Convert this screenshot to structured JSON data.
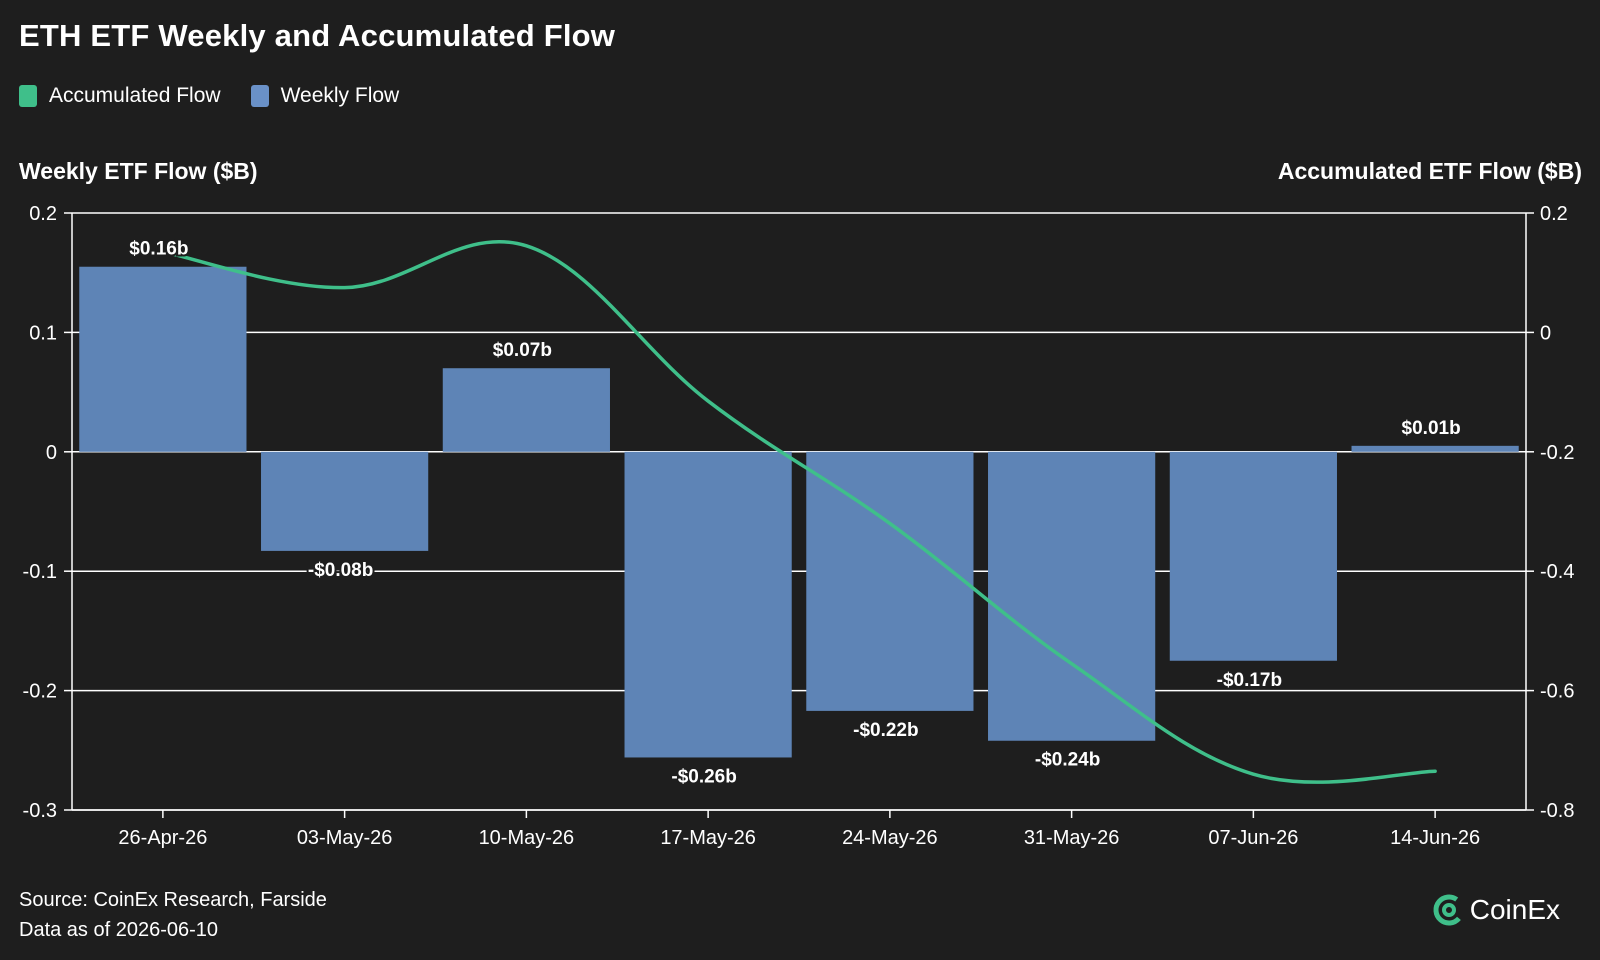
{
  "title": "ETH ETF Weekly and Accumulated Flow",
  "legend": [
    {
      "label": "Accumulated Flow",
      "color": "#3fbf8a"
    },
    {
      "label": "Weekly Flow",
      "color": "#6a91c8"
    }
  ],
  "left_axis_title": "Weekly ETF Flow ($B)",
  "right_axis_title": "Accumulated ETF Flow ($B)",
  "footer": {
    "source": "Source: CoinEx Research, Farside",
    "date": "Data as of 2026-06-10"
  },
  "logo": {
    "text": "CoinEx",
    "icon": "coinex-logo-icon"
  },
  "colors": {
    "background": "#1e1e1e",
    "bar": "#5e84b6",
    "line": "#3fbf8a",
    "grid": "#ffffff"
  },
  "chart_data": {
    "type": "bar",
    "categories": [
      "26-Apr-26",
      "03-May-26",
      "10-May-26",
      "17-May-26",
      "24-May-26",
      "31-May-26",
      "07-Jun-26",
      "14-Jun-26"
    ],
    "series": [
      {
        "name": "Weekly Flow",
        "type": "bar",
        "axis": "left",
        "values": [
          0.155,
          -0.083,
          0.07,
          -0.256,
          -0.217,
          -0.242,
          -0.175,
          0.005
        ],
        "labels": [
          "$0.16b",
          "-$0.08b",
          "$0.07b",
          "-$0.26b",
          "-$0.22b",
          "-$0.24b",
          "-$0.17b",
          "$0.01b"
        ]
      },
      {
        "name": "Accumulated Flow",
        "type": "line",
        "axis": "right",
        "values": [
          0.135,
          0.075,
          0.145,
          -0.115,
          -0.32,
          -0.555,
          -0.74,
          -0.735
        ]
      }
    ],
    "y_left": {
      "min": -0.3,
      "max": 0.2,
      "ticks": [
        "0.2",
        "0.1",
        "0",
        "-0.1",
        "-0.2",
        "-0.3"
      ],
      "tick_values": [
        0.2,
        0.1,
        0,
        -0.1,
        -0.2,
        -0.3
      ]
    },
    "y_right": {
      "min": -0.8,
      "max": 0.2,
      "ticks": [
        "0.2",
        "0",
        "-0.2",
        "-0.4",
        "-0.6",
        "-0.8"
      ],
      "tick_values": [
        0.2,
        0,
        -0.2,
        -0.4,
        -0.6,
        -0.8
      ]
    },
    "grid": true,
    "legend_position": "top-left"
  }
}
